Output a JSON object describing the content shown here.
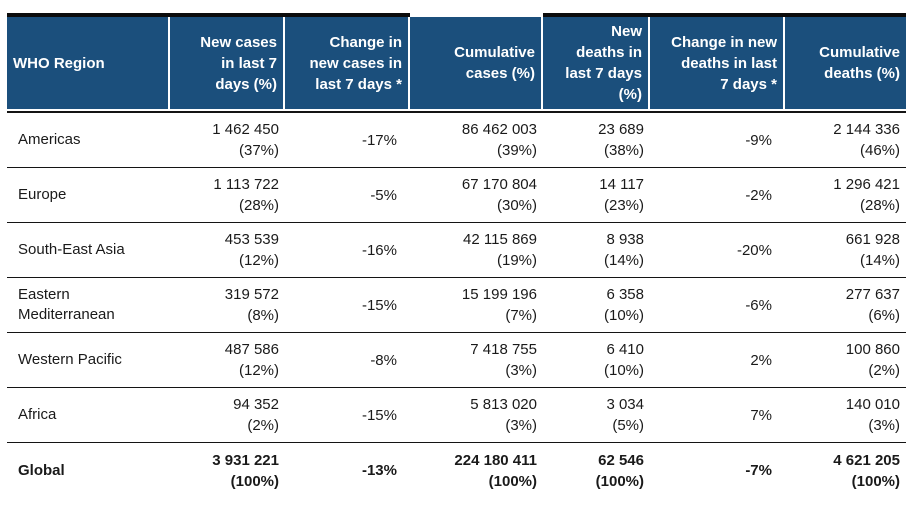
{
  "colors": {
    "header_bg": "#1B4F7C",
    "header_text": "#FFFFFF",
    "body_text": "#1A1A1A",
    "rule": "#141414"
  },
  "table": {
    "headers": [
      "WHO Region",
      "New cases\nin last 7\ndays (%)",
      "Change in\nnew cases in\nlast 7 days *",
      "Cumulative\ncases (%)",
      "New\ndeaths in\nlast 7 days\n(%)",
      "Change in new\ndeaths in last\n7 days *",
      "Cumulative\ndeaths (%)"
    ],
    "rows": [
      {
        "region": "Americas",
        "new_cases": "1 462 450",
        "new_cases_pct": "(37%)",
        "change_new_cases": "-17%",
        "cumulative_cases": "86 462 003",
        "cumulative_cases_pct": "(39%)",
        "new_deaths": "23 689",
        "new_deaths_pct": "(38%)",
        "change_new_deaths": "-9%",
        "cumulative_deaths": "2 144 336",
        "cumulative_deaths_pct": "(46%)"
      },
      {
        "region": "Europe",
        "new_cases": "1 113 722",
        "new_cases_pct": "(28%)",
        "change_new_cases": "-5%",
        "cumulative_cases": "67 170 804",
        "cumulative_cases_pct": "(30%)",
        "new_deaths": "14 117",
        "new_deaths_pct": "(23%)",
        "change_new_deaths": "-2%",
        "cumulative_deaths": "1 296 421",
        "cumulative_deaths_pct": "(28%)"
      },
      {
        "region": "South-East Asia",
        "new_cases": "453 539",
        "new_cases_pct": "(12%)",
        "change_new_cases": "-16%",
        "cumulative_cases": "42 115 869",
        "cumulative_cases_pct": "(19%)",
        "new_deaths": "8 938",
        "new_deaths_pct": "(14%)",
        "change_new_deaths": "-20%",
        "cumulative_deaths": "661 928",
        "cumulative_deaths_pct": "(14%)"
      },
      {
        "region": "Eastern Mediterranean",
        "new_cases": "319 572",
        "new_cases_pct": "(8%)",
        "change_new_cases": "-15%",
        "cumulative_cases": "15 199 196",
        "cumulative_cases_pct": "(7%)",
        "new_deaths": "6 358",
        "new_deaths_pct": "(10%)",
        "change_new_deaths": "-6%",
        "cumulative_deaths": "277 637",
        "cumulative_deaths_pct": "(6%)"
      },
      {
        "region": "Western Pacific",
        "new_cases": "487 586",
        "new_cases_pct": "(12%)",
        "change_new_cases": "-8%",
        "cumulative_cases": "7 418 755",
        "cumulative_cases_pct": "(3%)",
        "new_deaths": "6 410",
        "new_deaths_pct": "(10%)",
        "change_new_deaths": "2%",
        "cumulative_deaths": "100 860",
        "cumulative_deaths_pct": "(2%)"
      },
      {
        "region": "Africa",
        "new_cases": "94 352",
        "new_cases_pct": "(2%)",
        "change_new_cases": "-15%",
        "cumulative_cases": "5 813 020",
        "cumulative_cases_pct": "(3%)",
        "new_deaths": "3 034",
        "new_deaths_pct": "(5%)",
        "change_new_deaths": "7%",
        "cumulative_deaths": "140 010",
        "cumulative_deaths_pct": "(3%)"
      },
      {
        "region": "Global",
        "new_cases": "3 931 221",
        "new_cases_pct": "(100%)",
        "change_new_cases": "-13%",
        "cumulative_cases": "224 180 411",
        "cumulative_cases_pct": "(100%)",
        "new_deaths": "62 546",
        "new_deaths_pct": "(100%)",
        "change_new_deaths": "-7%",
        "cumulative_deaths": "4 621 205",
        "cumulative_deaths_pct": "(100%)"
      }
    ]
  }
}
